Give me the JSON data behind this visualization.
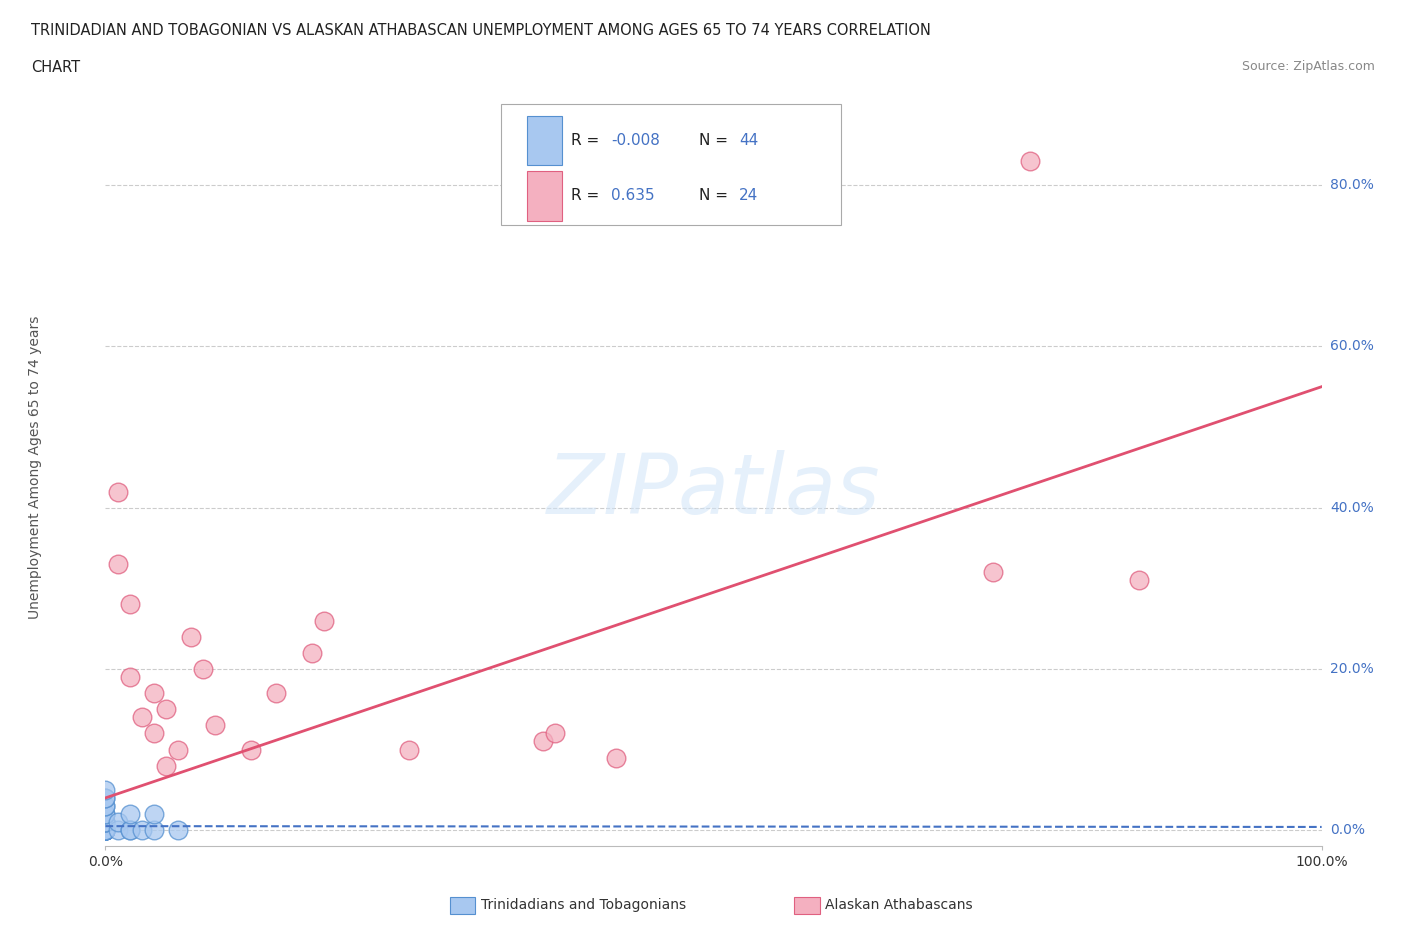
{
  "title_line1": "TRINIDADIAN AND TOBAGONIAN VS ALASKAN ATHABASCAN UNEMPLOYMENT AMONG AGES 65 TO 74 YEARS CORRELATION",
  "title_line2": "CHART",
  "source": "Source: ZipAtlas.com",
  "ylabel": "Unemployment Among Ages 65 to 74 years",
  "xlim": [
    0,
    1.0
  ],
  "ylim": [
    -0.02,
    0.92
  ],
  "ytick_vals": [
    0.0,
    0.2,
    0.4,
    0.6,
    0.8
  ],
  "ytick_labels": [
    "0.0%",
    "20.0%",
    "40.0%",
    "60.0%",
    "80.0%"
  ],
  "xtick_vals": [
    0.0,
    1.0
  ],
  "xtick_labels": [
    "0.0%",
    "100.0%"
  ],
  "grid_color": "#cccccc",
  "background_color": "#ffffff",
  "watermark_text": "ZIPatlas",
  "blue_color": "#a8c8f0",
  "pink_color": "#f4b0c0",
  "blue_edge_color": "#5590d0",
  "pink_edge_color": "#e06080",
  "blue_scatter_x": [
    0.0,
    0.0,
    0.0,
    0.0,
    0.0,
    0.0,
    0.0,
    0.0,
    0.0,
    0.0,
    0.0,
    0.0,
    0.0,
    0.0,
    0.0,
    0.0,
    0.0,
    0.0,
    0.0,
    0.0,
    0.0,
    0.0,
    0.0,
    0.0,
    0.0,
    0.0,
    0.0,
    0.0,
    0.0,
    0.0,
    0.0,
    0.0,
    0.0,
    0.0,
    0.0,
    0.01,
    0.01,
    0.02,
    0.02,
    0.02,
    0.03,
    0.04,
    0.04,
    0.06
  ],
  "blue_scatter_y": [
    0.0,
    0.0,
    0.0,
    0.0,
    0.0,
    0.0,
    0.0,
    0.0,
    0.0,
    0.0,
    0.0,
    0.0,
    0.0,
    0.0,
    0.0,
    0.0,
    0.0,
    0.0,
    0.0,
    0.0,
    0.0,
    0.0,
    0.0,
    0.0,
    0.01,
    0.01,
    0.01,
    0.01,
    0.02,
    0.02,
    0.03,
    0.03,
    0.04,
    0.04,
    0.05,
    0.0,
    0.01,
    0.0,
    0.0,
    0.02,
    0.0,
    0.0,
    0.02,
    0.0
  ],
  "pink_scatter_x": [
    0.01,
    0.01,
    0.02,
    0.02,
    0.03,
    0.04,
    0.04,
    0.05,
    0.05,
    0.06,
    0.07,
    0.08,
    0.09,
    0.12,
    0.14,
    0.17,
    0.18,
    0.25,
    0.36,
    0.37,
    0.42,
    0.73,
    0.76,
    0.85
  ],
  "pink_scatter_y": [
    0.42,
    0.33,
    0.19,
    0.28,
    0.14,
    0.17,
    0.12,
    0.15,
    0.08,
    0.1,
    0.24,
    0.2,
    0.13,
    0.1,
    0.17,
    0.22,
    0.26,
    0.1,
    0.11,
    0.12,
    0.09,
    0.32,
    0.83,
    0.31
  ],
  "blue_trend_x": [
    0.0,
    1.0
  ],
  "blue_trend_y": [
    0.005,
    0.004
  ],
  "pink_trend_x": [
    0.0,
    1.0
  ],
  "pink_trend_y": [
    0.04,
    0.55
  ],
  "blue_line_color": "#4472c4",
  "pink_line_color": "#e05070",
  "legend_label1": "Trinidadians and Tobagonians",
  "legend_label2": "Alaskan Athabascans"
}
